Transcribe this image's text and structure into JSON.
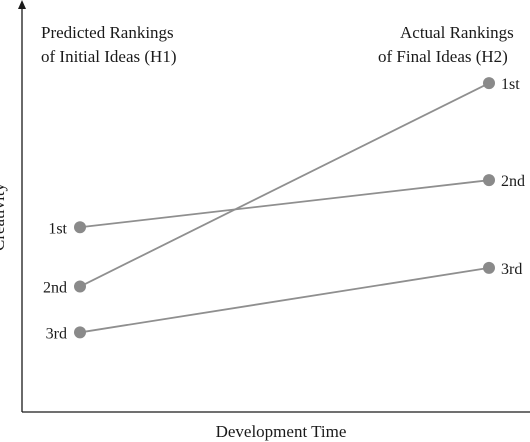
{
  "chart_data": {
    "type": "line",
    "xlabel": "Development Time",
    "ylabel": "Creativity",
    "left_header": [
      "Predicted Rankings",
      "of Initial Ideas (H1)"
    ],
    "right_header": [
      "Actual Rankings",
      "of Final Ideas (H2)"
    ],
    "x": [
      "Initial",
      "Final"
    ],
    "ylim": [
      0,
      1
    ],
    "series": [
      {
        "start_label": "1st",
        "end_label": "2nd",
        "values": [
          0.455,
          0.571
        ]
      },
      {
        "start_label": "2nd",
        "end_label": "1st",
        "values": [
          0.309,
          0.81
        ]
      },
      {
        "start_label": "3rd",
        "end_label": "3rd",
        "values": [
          0.196,
          0.355
        ]
      }
    ],
    "line_color": "#8f8f8f",
    "marker_color": "#8a8a8a",
    "axis_color": "#1a1a1a",
    "grid": false
  }
}
